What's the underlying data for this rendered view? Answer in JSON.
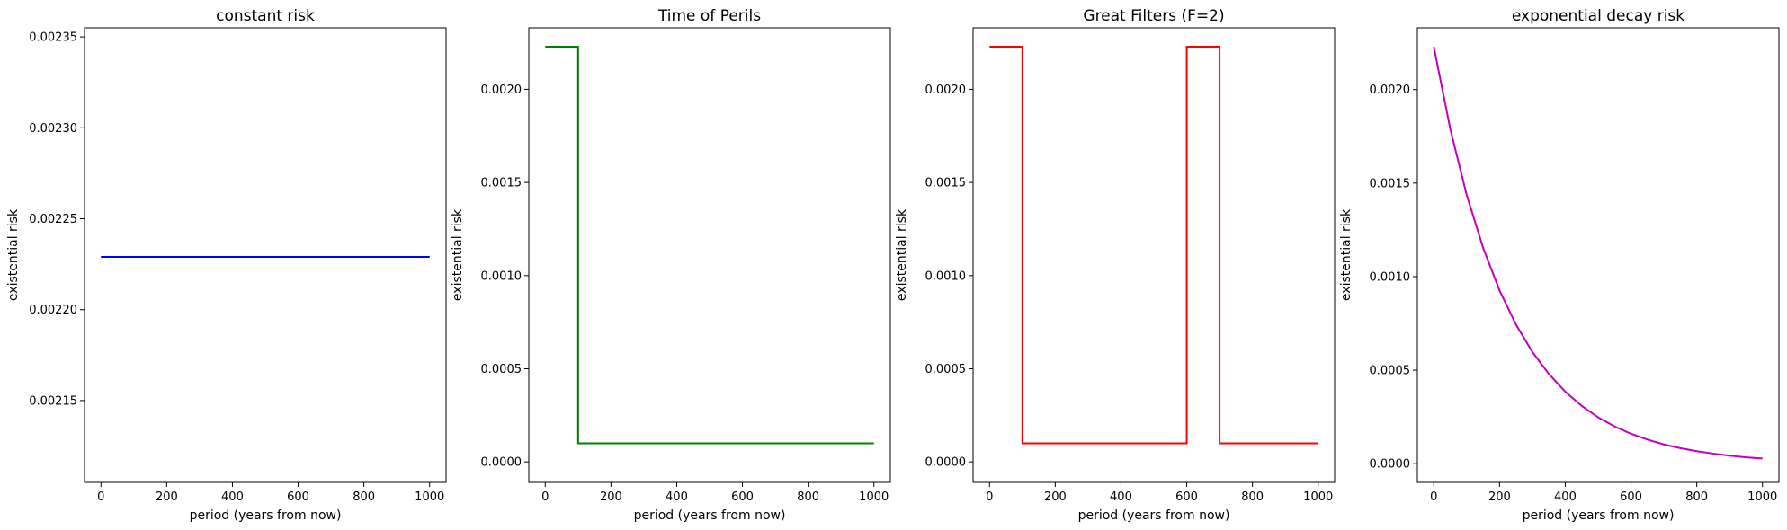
{
  "chart_data": [
    {
      "type": "line",
      "title": "constant risk",
      "xlabel": "period (years from now)",
      "ylabel": "existential risk",
      "xlim": [
        -50,
        1050
      ],
      "ylim": [
        0.002105,
        0.002355
      ],
      "xticks": [
        0,
        200,
        400,
        600,
        800,
        1000
      ],
      "xtick_labels": [
        "0",
        "200",
        "400",
        "600",
        "800",
        "1000"
      ],
      "yticks": [
        0.00215,
        0.0022,
        0.00225,
        0.0023,
        0.00235
      ],
      "ytick_labels": [
        "0.00215",
        "0.00220",
        "0.00225",
        "0.00230",
        "0.00235"
      ],
      "grid": false,
      "color": "#0000ff",
      "series": [
        {
          "x": [
            0,
            1000
          ],
          "y": [
            0.002229,
            0.002229
          ]
        }
      ]
    },
    {
      "type": "line",
      "title": "Time of Perils",
      "xlabel": "period (years from now)",
      "ylabel": "existential risk",
      "xlim": [
        -50,
        1050
      ],
      "ylim": [
        -0.00011,
        0.00233
      ],
      "xticks": [
        0,
        200,
        400,
        600,
        800,
        1000
      ],
      "xtick_labels": [
        "0",
        "200",
        "400",
        "600",
        "800",
        "1000"
      ],
      "yticks": [
        0.0,
        0.0005,
        0.001,
        0.0015,
        0.002
      ],
      "ytick_labels": [
        "0.0000",
        "0.0005",
        "0.0010",
        "0.0015",
        "0.0020"
      ],
      "grid": false,
      "color": "#008000",
      "series": [
        {
          "x": [
            0,
            100,
            100,
            1000
          ],
          "y": [
            0.002229,
            0.002229,
            0.0001,
            0.0001
          ]
        }
      ]
    },
    {
      "type": "line",
      "title": "Great Filters (F=2)",
      "xlabel": "period (years from now)",
      "ylabel": "existential risk",
      "xlim": [
        -50,
        1050
      ],
      "ylim": [
        -0.00011,
        0.00233
      ],
      "xticks": [
        0,
        200,
        400,
        600,
        800,
        1000
      ],
      "xtick_labels": [
        "0",
        "200",
        "400",
        "600",
        "800",
        "1000"
      ],
      "yticks": [
        0.0,
        0.0005,
        0.001,
        0.0015,
        0.002
      ],
      "ytick_labels": [
        "0.0000",
        "0.0005",
        "0.0010",
        "0.0015",
        "0.0020"
      ],
      "grid": false,
      "color": "#ff0000",
      "series": [
        {
          "x": [
            0,
            100,
            100,
            600,
            600,
            700,
            700,
            1000
          ],
          "y": [
            0.002229,
            0.002229,
            0.0001,
            0.0001,
            0.002229,
            0.002229,
            0.0001,
            0.0001
          ]
        }
      ]
    },
    {
      "type": "line",
      "title": "exponential decay risk",
      "xlabel": "period (years from now)",
      "ylabel": "existential risk",
      "xlim": [
        -50,
        1050
      ],
      "ylim": [
        -0.0001,
        0.00233
      ],
      "xticks": [
        0,
        200,
        400,
        600,
        800,
        1000
      ],
      "xtick_labels": [
        "0",
        "200",
        "400",
        "600",
        "800",
        "1000"
      ],
      "yticks": [
        0.0,
        0.0005,
        0.001,
        0.0015,
        0.002
      ],
      "ytick_labels": [
        "0.0000",
        "0.0005",
        "0.0010",
        "0.0015",
        "0.0020"
      ],
      "grid": false,
      "color": "#bf00bf",
      "series": [
        {
          "x": [
            0,
            50,
            100,
            150,
            200,
            250,
            300,
            350,
            400,
            450,
            500,
            550,
            600,
            650,
            700,
            750,
            800,
            850,
            900,
            950,
            1000
          ],
          "y": [
            0.002229,
            0.00179,
            0.001437,
            0.001154,
            0.000926,
            0.000744,
            0.000597,
            0.00048,
            0.000385,
            0.000309,
            0.000248,
            0.000199,
            0.00016,
            0.000129,
            0.000103,
            8.3e-05,
            6.7e-05,
            5.4e-05,
            4.3e-05,
            3.4e-05,
            2.8e-05
          ]
        }
      ]
    }
  ]
}
